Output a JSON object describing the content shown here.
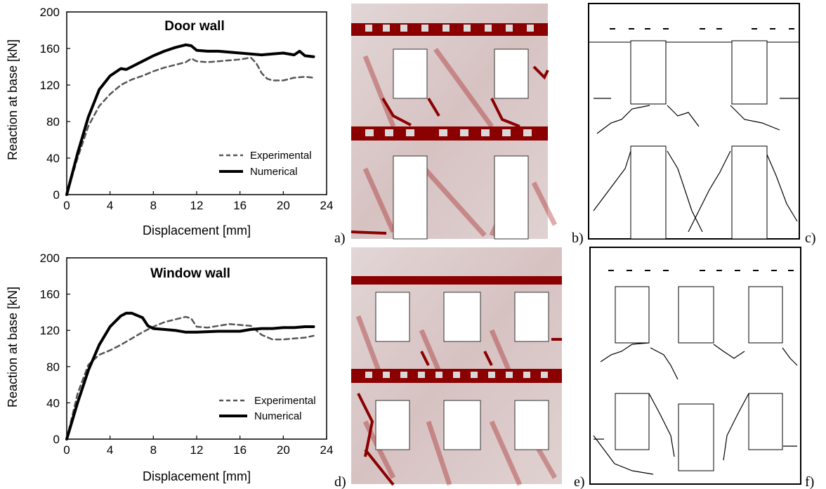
{
  "chart_data": [
    {
      "type": "line",
      "title": "Door wall",
      "xlabel": "Displacement [mm]",
      "ylabel": "Reaction at base [kN]",
      "xlim": [
        0,
        24
      ],
      "ylim": [
        0,
        200
      ],
      "xticks": [
        "0",
        "4",
        "8",
        "12",
        "16",
        "20",
        "24"
      ],
      "yticks": [
        "0",
        "40",
        "80",
        "120",
        "160",
        "200"
      ],
      "legend_position": "bottom-right",
      "series": [
        {
          "name": "Experimental",
          "style": "dashed",
          "color": "#555555",
          "x": [
            0,
            1,
            2,
            3,
            4,
            5,
            6,
            7,
            8,
            9,
            10,
            11,
            11.5,
            12,
            13,
            14,
            15,
            16,
            17,
            17.5,
            18,
            18.5,
            19,
            20,
            21,
            22,
            22.8
          ],
          "y": [
            0,
            40,
            75,
            97,
            110,
            120,
            126,
            130,
            135,
            139,
            142,
            145,
            149,
            146,
            145,
            146,
            147,
            148,
            150,
            144,
            133,
            127,
            125,
            125,
            128,
            129,
            128
          ]
        },
        {
          "name": "Numerical",
          "style": "solid",
          "color": "#000000",
          "x": [
            0,
            1,
            2,
            3,
            4,
            5,
            5.5,
            6,
            7,
            8,
            9,
            10,
            11,
            11.5,
            12,
            13,
            14,
            16,
            18,
            19,
            20,
            21,
            21.5,
            22,
            22.8
          ],
          "y": [
            0,
            45,
            85,
            115,
            130,
            138,
            137,
            140,
            146,
            152,
            157,
            161,
            164,
            163,
            158,
            157,
            157,
            155,
            153,
            154,
            155,
            153,
            157,
            152,
            151
          ]
        }
      ]
    },
    {
      "type": "line",
      "title": "Window wall",
      "xlabel": "Displacement [mm]",
      "ylabel": "Reaction at base [kN]",
      "xlim": [
        0,
        24
      ],
      "ylim": [
        0,
        200
      ],
      "xticks": [
        "0",
        "4",
        "8",
        "12",
        "16",
        "20",
        "24"
      ],
      "yticks": [
        "0",
        "40",
        "80",
        "120",
        "160",
        "200"
      ],
      "legend_position": "bottom-right",
      "series": [
        {
          "name": "Experimental",
          "style": "dashed",
          "color": "#555555",
          "x": [
            0,
            1,
            2,
            3,
            4,
            5,
            6,
            7,
            8,
            9,
            10,
            11,
            11.5,
            12,
            13,
            14,
            15,
            16,
            17,
            18,
            19,
            20,
            21,
            22,
            22.8
          ],
          "y": [
            0,
            50,
            82,
            93,
            98,
            104,
            111,
            118,
            124,
            129,
            132,
            135,
            133,
            124,
            123,
            125,
            127,
            126,
            125,
            115,
            110,
            110,
            111,
            112,
            114
          ]
        },
        {
          "name": "Numerical",
          "style": "solid",
          "color": "#000000",
          "x": [
            0,
            1,
            2,
            3,
            4,
            5,
            5.5,
            6,
            7,
            7.5,
            8,
            9,
            10,
            11,
            12,
            14,
            16,
            17,
            18,
            19,
            20,
            21,
            22,
            22.8
          ],
          "y": [
            0,
            40,
            76,
            104,
            124,
            136,
            139,
            139,
            134,
            125,
            122,
            121,
            120,
            118,
            118,
            119,
            119,
            121,
            122,
            122,
            123,
            123,
            124,
            124
          ]
        }
      ]
    }
  ],
  "panel_labels": [
    "a)",
    "b)",
    "c)",
    "d)",
    "e)",
    "f)"
  ],
  "colors": {
    "crack_red": "#8b0000",
    "mesh_gray": "#d8d8d8"
  }
}
